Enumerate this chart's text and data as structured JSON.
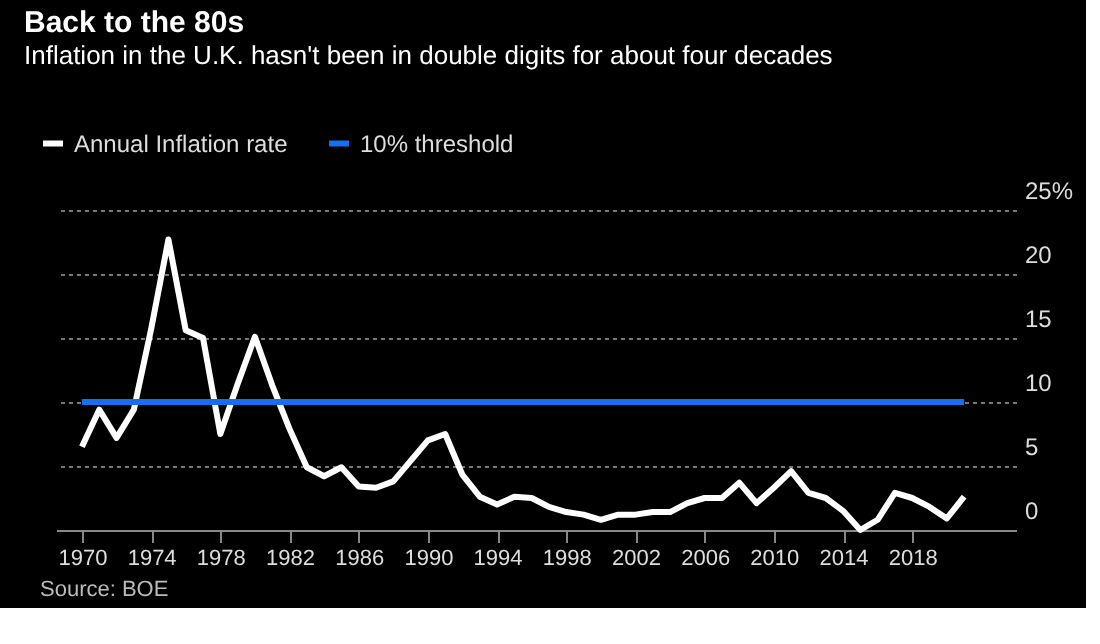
{
  "chart_data": {
    "type": "line",
    "title": "Back to the 80s",
    "subtitle": "Inflation in the U.K. hasn't been in double digits for about four decades",
    "x": [
      1970,
      1971,
      1972,
      1973,
      1974,
      1975,
      1976,
      1977,
      1978,
      1979,
      1980,
      1981,
      1982,
      1983,
      1984,
      1985,
      1986,
      1987,
      1988,
      1989,
      1990,
      1991,
      1992,
      1993,
      1994,
      1995,
      1996,
      1997,
      1998,
      1999,
      2000,
      2001,
      2002,
      2003,
      2004,
      2005,
      2006,
      2007,
      2008,
      2009,
      2010,
      2011,
      2012,
      2013,
      2014,
      2015,
      2016,
      2017,
      2018,
      2019,
      2020,
      2021
    ],
    "series": [
      {
        "name": "Annual Inflation rate",
        "color": "#ffffff",
        "values": [
          6.5,
          9.4,
          7.2,
          9.4,
          15.7,
          22.7,
          15.6,
          15.0,
          7.5,
          11.4,
          15.1,
          11.3,
          7.9,
          4.9,
          4.2,
          4.9,
          3.4,
          3.3,
          3.8,
          5.4,
          7.0,
          7.5,
          4.3,
          2.6,
          2.0,
          2.6,
          2.5,
          1.8,
          1.4,
          1.2,
          0.8,
          1.2,
          1.2,
          1.4,
          1.4,
          2.1,
          2.5,
          2.5,
          3.7,
          2.1,
          3.3,
          4.6,
          2.9,
          2.5,
          1.5,
          0.0,
          0.8,
          2.9,
          2.5,
          1.8,
          0.9,
          2.6
        ]
      },
      {
        "name": "10% threshold",
        "color": "#1a6cf0",
        "x": [
          1970,
          2021
        ],
        "values": [
          10,
          10
        ]
      }
    ],
    "xlim": [
      1968.5,
      2024
    ],
    "xticks": [
      1970,
      1974,
      1978,
      1982,
      1986,
      1990,
      1994,
      1998,
      2002,
      2006,
      2010,
      2014,
      2018
    ],
    "ylim": [
      0,
      25
    ],
    "yticks": [
      0,
      5,
      10,
      15,
      20,
      {
        "value": 25,
        "label": "25%"
      }
    ],
    "grid": "y",
    "legend": "top left",
    "marker": "none",
    "line_style": "solid",
    "annotations": [
      "Source: BOE"
    ]
  }
}
